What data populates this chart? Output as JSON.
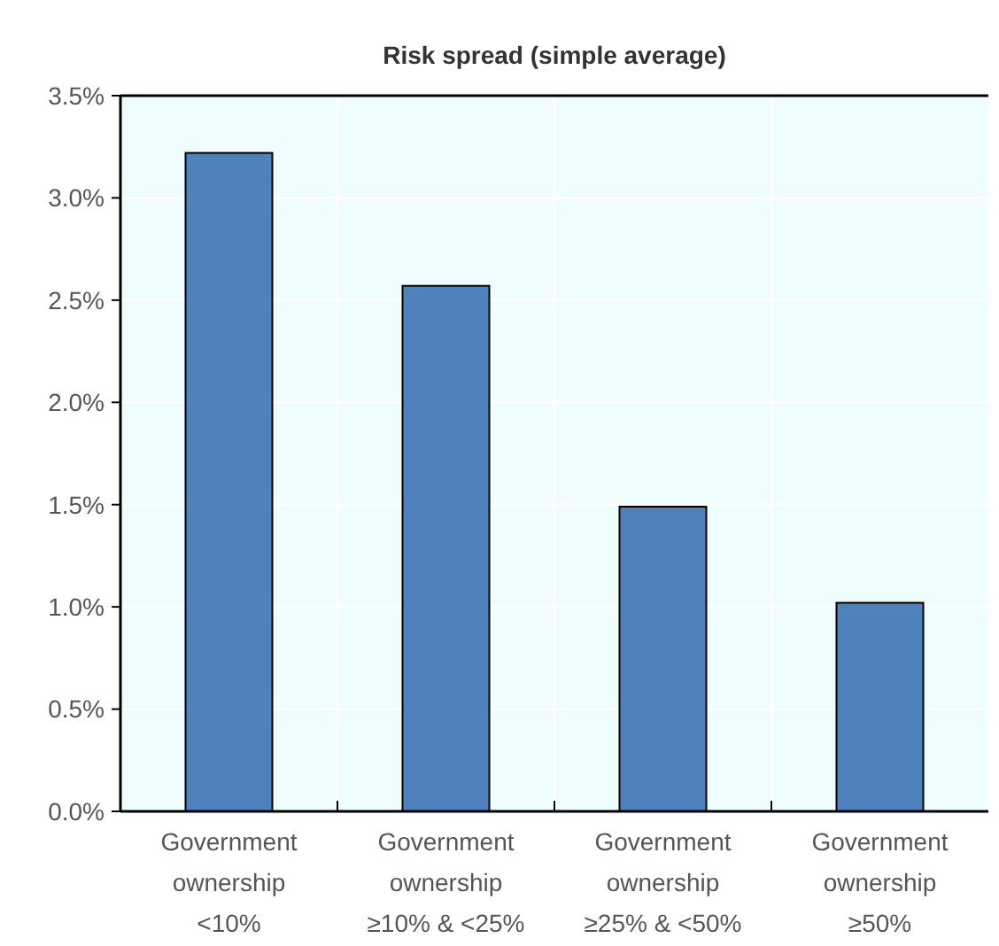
{
  "chart_data": {
    "type": "bar",
    "title": "Risk spread (simple average)",
    "categories": [
      "Government\nownership\n<10%",
      "Government\nownership\n≥10% & <25%",
      "Government\nownership\n≥25% & <50%",
      "Government\nownership\n≥50%"
    ],
    "values": [
      0.0322,
      0.0257,
      0.0149,
      0.0102
    ],
    "color": "#4f81bd",
    "ylim": [
      0,
      0.035
    ],
    "yticks": [
      {
        "value": 0,
        "label": "0.0%"
      },
      {
        "value": 0.005,
        "label": "0.5%"
      },
      {
        "value": 0.01,
        "label": "1.0%"
      },
      {
        "value": 0.015,
        "label": "1.5%"
      },
      {
        "value": 0.02,
        "label": "2.0%"
      },
      {
        "value": 0.025,
        "label": "2.5%"
      },
      {
        "value": 0.03,
        "label": "3.0%"
      },
      {
        "value": 0.035,
        "label": "3.5%"
      }
    ],
    "grid": true
  }
}
